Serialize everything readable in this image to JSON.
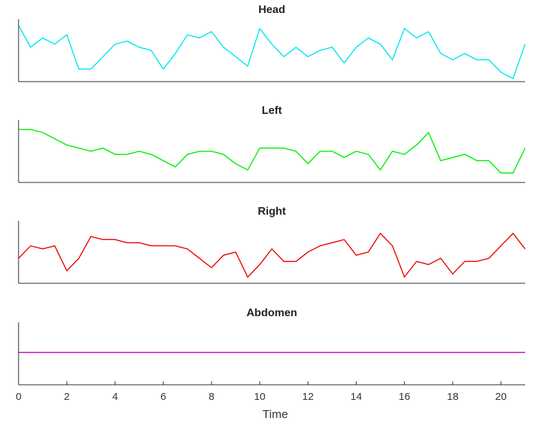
{
  "chart_data": [
    {
      "type": "line",
      "title": "Head",
      "color": "#00e5ee",
      "xlim": [
        0,
        21
      ],
      "ylim": [
        0,
        1
      ],
      "x": [
        0,
        0.5,
        1,
        1.5,
        2,
        2.5,
        3,
        3.5,
        4,
        4.5,
        5,
        5.5,
        6,
        6.5,
        7,
        7.5,
        8,
        8.5,
        9,
        9.5,
        10,
        10.5,
        11,
        11.5,
        12,
        12.5,
        13,
        13.5,
        14,
        14.5,
        15,
        15.5,
        16,
        16.5,
        17,
        17.5,
        18,
        18.5,
        19,
        19.5,
        20,
        20.5,
        21
      ],
      "values": [
        0.9,
        0.55,
        0.7,
        0.6,
        0.75,
        0.2,
        0.2,
        0.4,
        0.6,
        0.65,
        0.55,
        0.5,
        0.2,
        0.45,
        0.75,
        0.7,
        0.8,
        0.55,
        0.4,
        0.25,
        0.85,
        0.6,
        0.4,
        0.55,
        0.4,
        0.5,
        0.55,
        0.3,
        0.55,
        0.7,
        0.6,
        0.35,
        0.85,
        0.7,
        0.8,
        0.45,
        0.35,
        0.45,
        0.35,
        0.35,
        0.15,
        0.05,
        0.6
      ]
    },
    {
      "type": "line",
      "title": "Left",
      "color": "#00ee00",
      "xlim": [
        0,
        21
      ],
      "ylim": [
        0,
        1
      ],
      "x": [
        0,
        0.5,
        1,
        1.5,
        2,
        2.5,
        3,
        3.5,
        4,
        4.5,
        5,
        5.5,
        6,
        6.5,
        7,
        7.5,
        8,
        8.5,
        9,
        9.5,
        10,
        10.5,
        11,
        11.5,
        12,
        12.5,
        13,
        13.5,
        14,
        14.5,
        15,
        15.5,
        16,
        16.5,
        17,
        17.5,
        18,
        18.5,
        19,
        19.5,
        20,
        20.5,
        21
      ],
      "values": [
        0.85,
        0.85,
        0.8,
        0.7,
        0.6,
        0.55,
        0.5,
        0.55,
        0.45,
        0.45,
        0.5,
        0.45,
        0.35,
        0.25,
        0.45,
        0.5,
        0.5,
        0.45,
        0.3,
        0.2,
        0.55,
        0.55,
        0.55,
        0.5,
        0.3,
        0.5,
        0.5,
        0.4,
        0.5,
        0.45,
        0.2,
        0.5,
        0.45,
        0.6,
        0.8,
        0.35,
        0.4,
        0.45,
        0.35,
        0.35,
        0.15,
        0.15,
        0.55
      ]
    },
    {
      "type": "line",
      "title": "Right",
      "color": "#ee0000",
      "xlim": [
        0,
        21
      ],
      "ylim": [
        0,
        1
      ],
      "x": [
        0,
        0.5,
        1,
        1.5,
        2,
        2.5,
        3,
        3.5,
        4,
        4.5,
        5,
        5.5,
        6,
        6.5,
        7,
        7.5,
        8,
        8.5,
        9,
        9.5,
        10,
        10.5,
        11,
        11.5,
        12,
        12.5,
        13,
        13.5,
        14,
        14.5,
        15,
        15.5,
        16,
        16.5,
        17,
        17.5,
        18,
        18.5,
        19,
        19.5,
        20,
        20.5,
        21
      ],
      "values": [
        0.4,
        0.6,
        0.55,
        0.6,
        0.2,
        0.4,
        0.75,
        0.7,
        0.7,
        0.65,
        0.65,
        0.6,
        0.6,
        0.6,
        0.55,
        0.4,
        0.25,
        0.45,
        0.5,
        0.1,
        0.3,
        0.55,
        0.35,
        0.35,
        0.5,
        0.6,
        0.65,
        0.7,
        0.45,
        0.5,
        0.8,
        0.6,
        0.1,
        0.35,
        0.3,
        0.4,
        0.15,
        0.35,
        0.35,
        0.4,
        0.6,
        0.8,
        0.55
      ]
    },
    {
      "type": "line",
      "title": "Abdomen",
      "color": "#cc00cc",
      "xlim": [
        0,
        21
      ],
      "ylim": [
        0,
        1
      ],
      "x": [
        0,
        21
      ],
      "values": [
        0.52,
        0.52
      ],
      "xticks": [
        0,
        2,
        4,
        6,
        8,
        10,
        12,
        14,
        16,
        18,
        20
      ],
      "xlabel": "Time"
    }
  ]
}
